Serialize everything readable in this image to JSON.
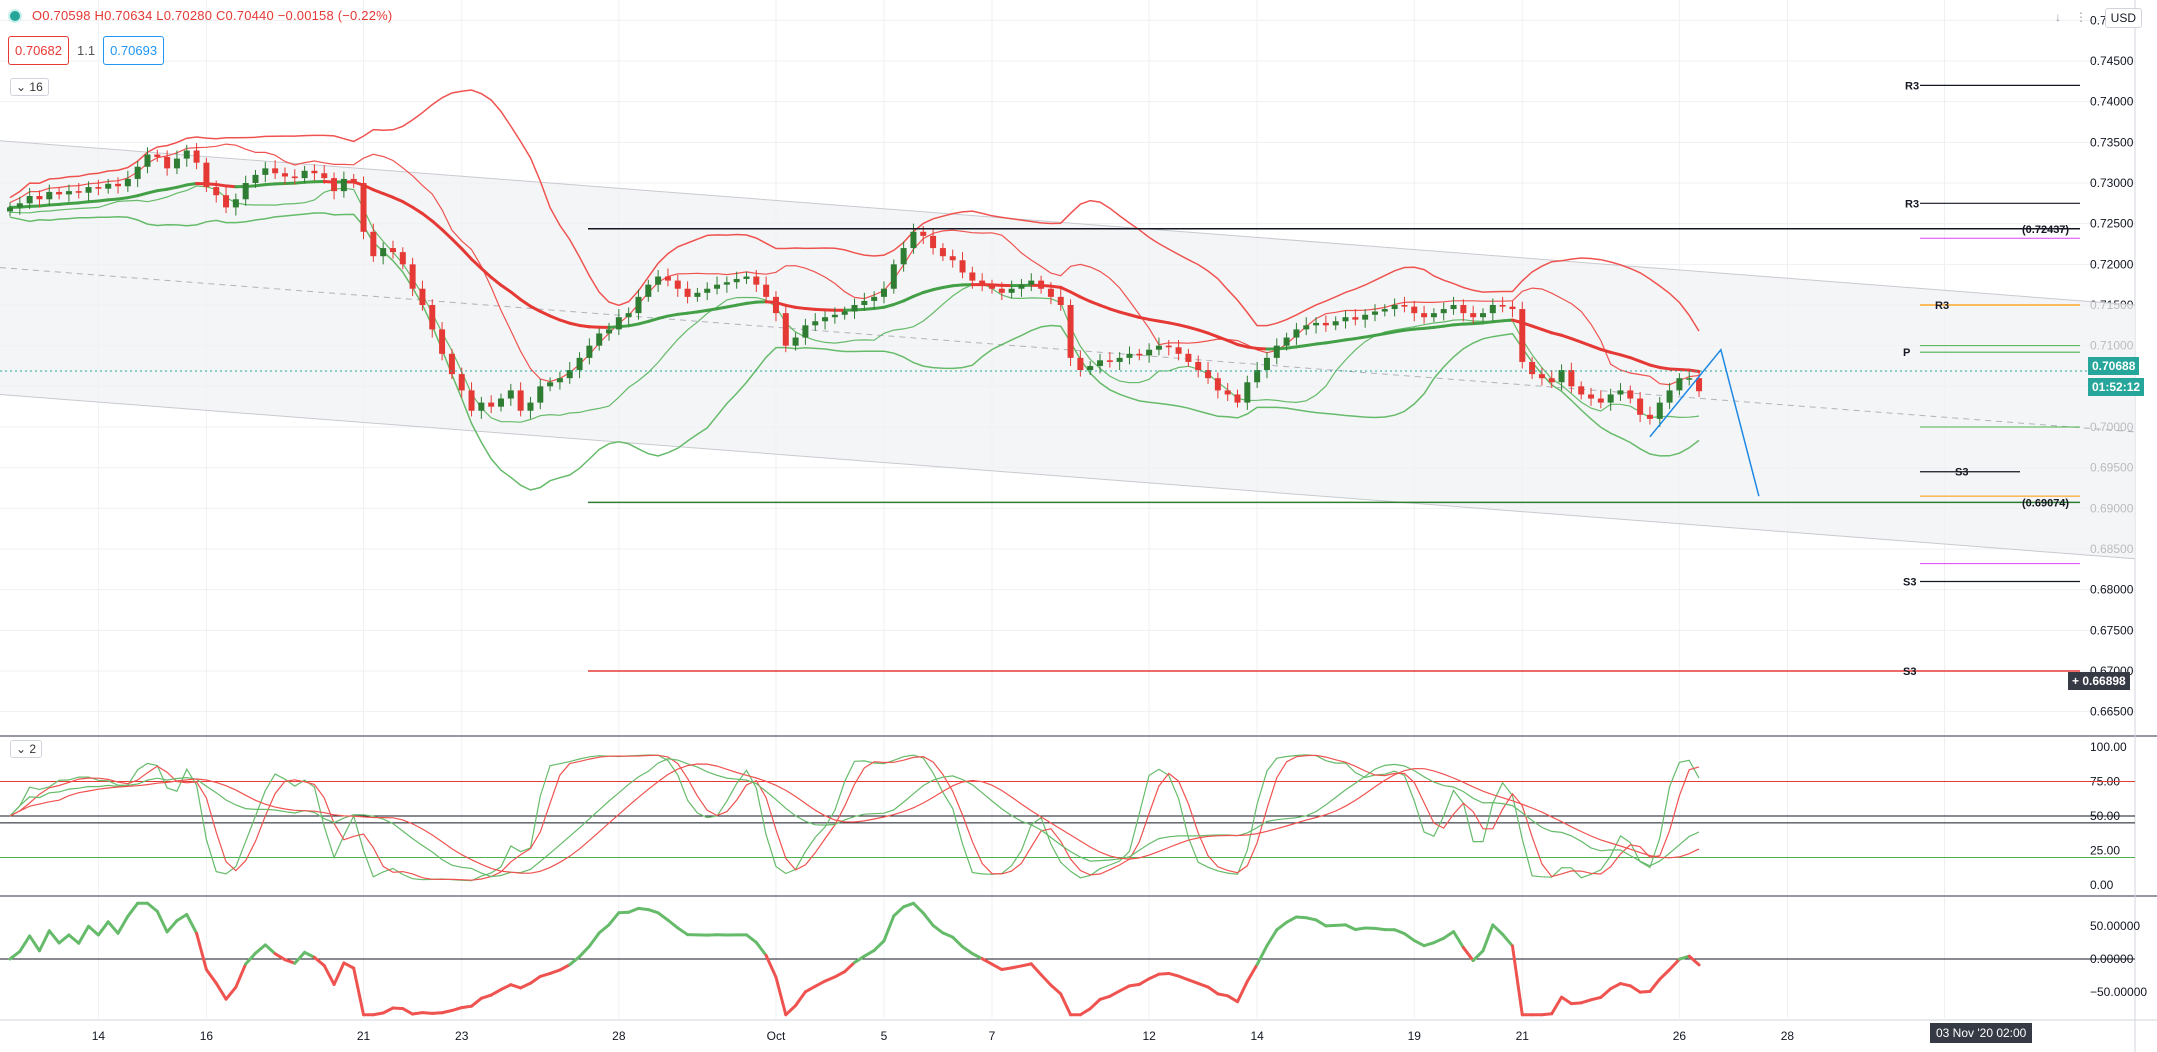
{
  "header": {
    "ohlc": "O0.70598 H0.70634 L0.70280 C0.70440 −0.00158 (−0.22%)",
    "bid": "0.70682",
    "spread": "1.1",
    "ask": "0.70693",
    "pane1_collapse": "16",
    "pane2_collapse": "2",
    "currency": "USD"
  },
  "price_tags": {
    "last": "0.70688",
    "countdown": "01:52:12",
    "crosshair": "0.66898",
    "time": "03 Nov '20   02:00"
  },
  "chart_data": {
    "type": "candlestick",
    "main_axis": {
      "ylim": [
        0.6625,
        0.7525
      ],
      "ticks": [
        "0.75000",
        "0.74500",
        "0.74000",
        "0.73500",
        "0.73000",
        "0.72500",
        "0.72000",
        "0.71500",
        "0.71000",
        "0.70500",
        "0.70000",
        "0.69500",
        "0.69000",
        "0.68500",
        "0.68000",
        "0.67500",
        "0.67000",
        "0.66500"
      ]
    },
    "x_labels": [
      {
        "label": "14",
        "bar": 9
      },
      {
        "label": "16",
        "bar": 20
      },
      {
        "label": "21",
        "bar": 36
      },
      {
        "label": "23",
        "bar": 46
      },
      {
        "label": "28",
        "bar": 62
      },
      {
        "label": "Oct",
        "bar": 78
      },
      {
        "label": "5",
        "bar": 89
      },
      {
        "label": "7",
        "bar": 100
      },
      {
        "label": "12",
        "bar": 116
      },
      {
        "label": "14",
        "bar": 127
      },
      {
        "label": "19",
        "bar": 143
      },
      {
        "label": "21",
        "bar": 154
      },
      {
        "label": "26",
        "bar": 170
      },
      {
        "label": "28",
        "bar": 181
      },
      {
        "label": "Nov",
        "bar": 197
      }
    ],
    "close": [
      0.727,
      0.7275,
      0.7284,
      0.728,
      0.7289,
      0.7286,
      0.729,
      0.7288,
      0.7295,
      0.7293,
      0.7299,
      0.7296,
      0.7305,
      0.732,
      0.7335,
      0.7332,
      0.7318,
      0.733,
      0.734,
      0.7325,
      0.7295,
      0.7285,
      0.727,
      0.728,
      0.73,
      0.731,
      0.7318,
      0.7312,
      0.7308,
      0.7306,
      0.7315,
      0.7312,
      0.7306,
      0.729,
      0.7305,
      0.73,
      0.724,
      0.721,
      0.722,
      0.7215,
      0.72,
      0.717,
      0.715,
      0.712,
      0.709,
      0.7065,
      0.7045,
      0.702,
      0.703,
      0.7025,
      0.7035,
      0.7045,
      0.702,
      0.703,
      0.705,
      0.7055,
      0.706,
      0.707,
      0.7085,
      0.71,
      0.7115,
      0.712,
      0.7135,
      0.714,
      0.716,
      0.7175,
      0.7185,
      0.718,
      0.717,
      0.716,
      0.7165,
      0.717,
      0.7175,
      0.7178,
      0.7182,
      0.7185,
      0.7175,
      0.716,
      0.714,
      0.71,
      0.711,
      0.7125,
      0.713,
      0.7135,
      0.7138,
      0.7142,
      0.715,
      0.7155,
      0.716,
      0.717,
      0.72,
      0.722,
      0.724,
      0.7235,
      0.722,
      0.721,
      0.7205,
      0.719,
      0.718,
      0.7175,
      0.717,
      0.7165,
      0.717,
      0.7175,
      0.718,
      0.717,
      0.716,
      0.715,
      0.7085,
      0.707,
      0.7075,
      0.7082,
      0.708,
      0.7085,
      0.709,
      0.7088,
      0.7095,
      0.71,
      0.7098,
      0.709,
      0.708,
      0.707,
      0.706,
      0.7045,
      0.704,
      0.703,
      0.7055,
      0.707,
      0.7085,
      0.71,
      0.711,
      0.712,
      0.7125,
      0.7128,
      0.7125,
      0.713,
      0.7135,
      0.7132,
      0.7138,
      0.7142,
      0.7145,
      0.715,
      0.7148,
      0.714,
      0.7135,
      0.714,
      0.7145,
      0.715,
      0.714,
      0.7135,
      0.714,
      0.715,
      0.7148,
      0.7145,
      0.708,
      0.7065,
      0.706,
      0.7055,
      0.707,
      0.705,
      0.704,
      0.7035,
      0.703,
      0.704,
      0.7045,
      0.7035,
      0.7015,
      0.701,
      0.703,
      0.7045,
      0.706,
      0.706,
      0.7044
    ],
    "indicators": [
      {
        "name": "Bollinger upper / lower (outer)",
        "role": "bands"
      },
      {
        "name": "EMA",
        "role": "average"
      }
    ],
    "pivot_levels": [
      {
        "label": "R3",
        "value": 0.742
      },
      {
        "label": "R3",
        "value": 0.7275
      },
      {
        "label": "(0.72437)",
        "value": 0.72437
      },
      {
        "label": "R3",
        "value": 0.715
      },
      {
        "label": "P",
        "value": 0.7092
      },
      {
        "label": "S3",
        "value": 0.6945
      },
      {
        "label": "(0.69074)",
        "value": 0.69074
      },
      {
        "label": "S3",
        "value": 0.681
      },
      {
        "label": "S3",
        "value": 0.67
      }
    ],
    "stoch": {
      "ticks": [
        "100.00",
        "75.00",
        "50.00",
        "25.00",
        "0.00"
      ],
      "ylim": [
        -5,
        105
      ],
      "levels": [
        75,
        50,
        45,
        20
      ]
    },
    "osc": {
      "ticks": [
        "50.00000",
        "0.00000",
        "−50.00000"
      ],
      "ylim": [
        -90,
        90
      ]
    }
  }
}
